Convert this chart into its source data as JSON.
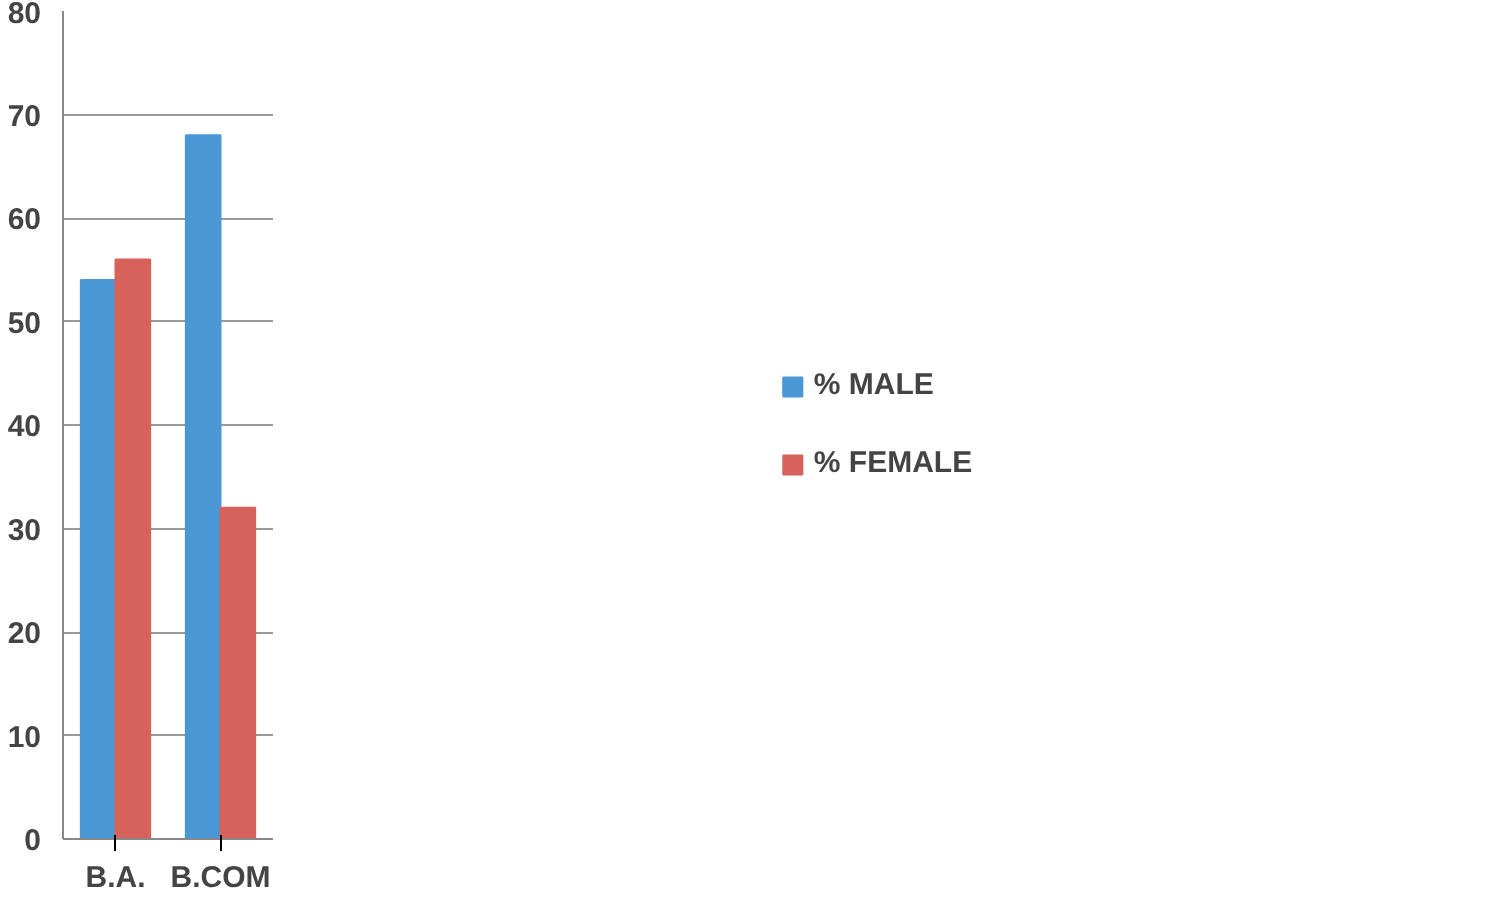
{
  "chart_data": {
    "type": "bar",
    "categories": [
      "B.A.",
      "B.COM"
    ],
    "series": [
      {
        "name": "% MALE",
        "color": "#4a97d6",
        "values": [
          54,
          68
        ]
      },
      {
        "name": "% FEMALE",
        "color": "#d7615b",
        "values": [
          56,
          32
        ]
      }
    ],
    "ylim": [
      0,
      80
    ],
    "yticks": [
      0,
      10,
      20,
      30,
      40,
      50,
      60,
      70,
      80
    ],
    "grid": "y",
    "legend": "right"
  }
}
